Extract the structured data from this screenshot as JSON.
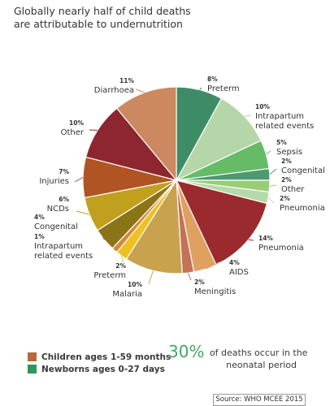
{
  "title_line1": "Globally nearly half of child deaths",
  "title_line2": "are attributable to undernutrition",
  "chart_data": {
    "type": "pie",
    "start_angle_deg": 0,
    "slices": [
      {
        "pct": "8%",
        "label": "Preterm",
        "value": 8,
        "group": "newborns",
        "color": "#3d8c66"
      },
      {
        "pct": "10%",
        "label": "Intrapartum related events",
        "value": 10,
        "group": "newborns",
        "color": "#b5d6a8"
      },
      {
        "pct": "5%",
        "label": "Sepsis",
        "value": 5,
        "group": "newborns",
        "color": "#66bb66"
      },
      {
        "pct": "2%",
        "label": "Congenital",
        "value": 2,
        "group": "newborns",
        "color": "#4c9970"
      },
      {
        "pct": "2%",
        "label": "Other",
        "value": 2,
        "group": "newborns",
        "color": "#99cc77"
      },
      {
        "pct": "2%",
        "label": "Pneumonia",
        "value": 2,
        "group": "newborns",
        "color": "#b5d9a8"
      },
      {
        "pct": "14%",
        "label": "Pneumonia",
        "value": 14,
        "group": "children",
        "color": "#9a2a2e"
      },
      {
        "pct": "4%",
        "label": "AIDS",
        "value": 4,
        "group": "children",
        "color": "#e0a060"
      },
      {
        "pct": "2%",
        "label": "Meningitis",
        "value": 2,
        "group": "children",
        "color": "#c47256"
      },
      {
        "pct": "10%",
        "label": "Malaria",
        "value": 10,
        "group": "children",
        "color": "#c9a24e"
      },
      {
        "pct": "2%",
        "label": "Preterm",
        "value": 2,
        "group": "children",
        "color": "#f0c020"
      },
      {
        "pct": "1%",
        "label": "Intrapartum related events",
        "value": 1,
        "group": "children",
        "color": "#d08a3a"
      },
      {
        "pct": "4%",
        "label": "Congenital",
        "value": 4,
        "group": "children",
        "color": "#8b7416"
      },
      {
        "pct": "6%",
        "label": "NCDs",
        "value": 6,
        "group": "children",
        "color": "#c0a01c"
      },
      {
        "pct": "7%",
        "label": "Injuries",
        "value": 7,
        "group": "children",
        "color": "#b05423"
      },
      {
        "pct": "10%",
        "label": "Other",
        "value": 10,
        "group": "children",
        "color": "#8e2630"
      },
      {
        "pct": "11%",
        "label": "Diarrhoea",
        "value": 11,
        "group": "children",
        "color": "#cc8860"
      }
    ]
  },
  "legend": [
    {
      "label": "Children ages 1-59 months",
      "color": "#b66a3c"
    },
    {
      "label": "Newborns ages 0-27 days",
      "color": "#2f9659"
    }
  ],
  "stat": {
    "big": "30%",
    "text_line1": "of deaths occur in the",
    "text_line2": "neonatal period"
  },
  "source": "Source: WHO MCEE 2015"
}
